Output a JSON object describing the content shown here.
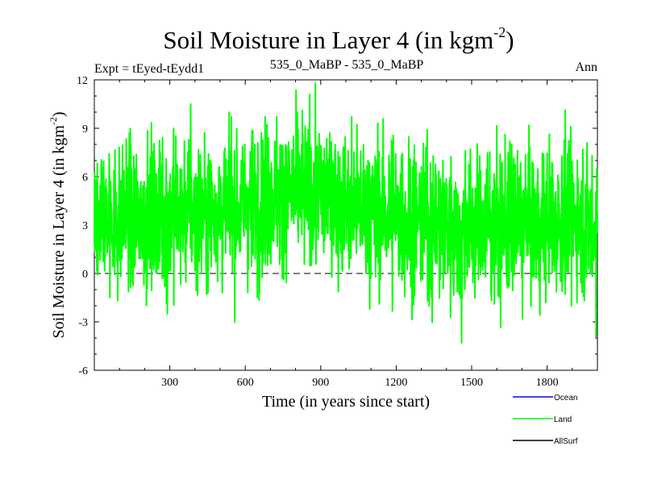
{
  "chart_data": {
    "type": "line",
    "title": "Soil Moisture in Layer 4 (in kgm",
    "title_sup": "-2",
    "title_tail": ")",
    "subtitle_left": "Expt = tEyed-tEydd1",
    "subtitle_center": "535_0_MaBP - 535_0_MaBP",
    "subtitle_right": "Ann",
    "xlabel": "Time (in years since start)",
    "ylabel": "Soil Moisture in Layer 4 (in kgm",
    "ylabel_sup": "-2",
    "ylabel_tail": ")",
    "xlim": [
      0,
      2000
    ],
    "ylim": [
      -6,
      12
    ],
    "xticks": [
      300,
      600,
      900,
      1200,
      1500,
      1800
    ],
    "xtick_labels": [
      "300",
      "600",
      "900",
      "1200",
      "1500",
      "1800"
    ],
    "yticks": [
      -6,
      -3,
      0,
      3,
      6,
      9,
      12
    ],
    "ytick_labels": [
      "-6",
      "-3",
      "0",
      "3",
      "6",
      "9",
      "12"
    ],
    "zero_line": 0,
    "series": [
      {
        "name": "Ocean",
        "color": "#0000ff",
        "values": []
      },
      {
        "name": "Land",
        "color": "#00ff00",
        "noise_amplitude": 2.3,
        "values_mean_by_century": [
          3.5,
          3.3,
          3.6,
          3.8,
          4.0,
          3.9,
          4.3,
          4.6,
          5.0,
          5.1,
          4.2,
          3.9,
          3.6,
          3.2,
          2.9,
          3.0,
          3.1,
          3.0,
          3.2,
          3.6,
          3.0
        ],
        "extremes": [
          {
            "x": 856,
            "y": 11.1
          },
          {
            "x": 383,
            "y": 10.5
          },
          {
            "x": 1460,
            "y": -4.3
          },
          {
            "x": 1995,
            "y": -3.9
          },
          {
            "x": 290,
            "y": -2.5
          }
        ]
      },
      {
        "name": "AllSurf",
        "color": "#000000",
        "values": []
      }
    ]
  }
}
